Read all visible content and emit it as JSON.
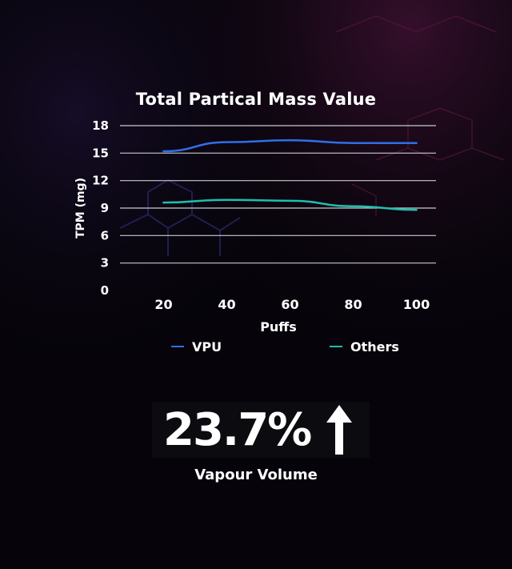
{
  "chart_data": {
    "type": "line",
    "title": "Total Partical Mass Value",
    "xlabel": "Puffs",
    "ylabel": "TPM (mg)",
    "x": [
      20,
      40,
      60,
      80,
      100
    ],
    "ylim": [
      0,
      18
    ],
    "yticks": [
      0,
      3,
      6,
      9,
      12,
      15,
      18
    ],
    "grid": "horizontal",
    "legend_position": "bottom",
    "series": [
      {
        "name": "VPU",
        "color": "#2f6fe8",
        "values": [
          15.2,
          16.2,
          16.4,
          16.1,
          16.1
        ]
      },
      {
        "name": "Others",
        "color": "#1fbfae",
        "values": [
          9.6,
          9.9,
          9.8,
          9.2,
          8.8
        ]
      }
    ]
  },
  "stat": {
    "value": "23.7%",
    "label": "Vapour Volume",
    "arrow_icon": "arrow-up-icon"
  }
}
